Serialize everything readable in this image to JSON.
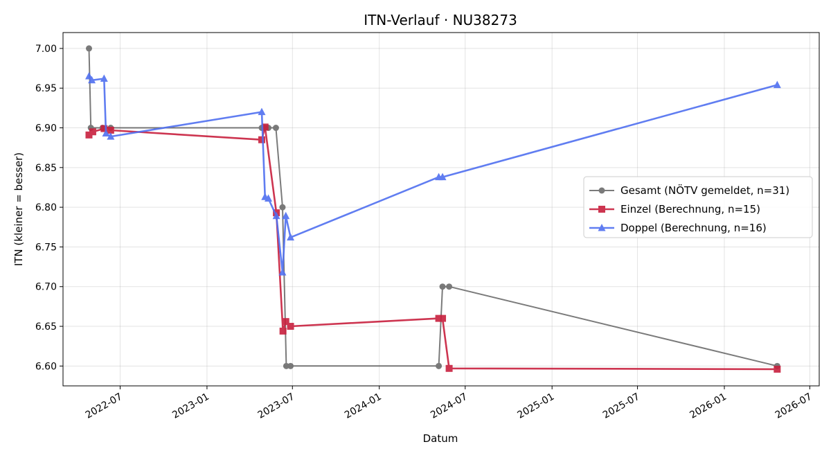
{
  "chart_data": {
    "type": "line",
    "title": "ITN-Verlauf · NU38273",
    "xlabel": "Datum",
    "ylabel": "ITN  (kleiner = besser)",
    "xlim": [
      "2022-03-02",
      "2026-07-21"
    ],
    "ylim": [
      6.575,
      7.02
    ],
    "x_ticks": [
      "2022-07-01",
      "2023-01-01",
      "2023-07-01",
      "2024-01-01",
      "2024-07-01",
      "2025-01-01",
      "2025-07-01",
      "2026-01-01",
      "2026-07-01"
    ],
    "x_tick_labels": [
      "2022-07",
      "2023-01",
      "2023-07",
      "2024-01",
      "2024-07",
      "2025-01",
      "2025-07",
      "2026-01",
      "2026-07"
    ],
    "y_ticks": [
      6.6,
      6.65,
      6.7,
      6.75,
      6.8,
      6.85,
      6.9,
      6.95,
      7.0
    ],
    "y_tick_labels": [
      "6.60",
      "6.65",
      "6.70",
      "6.75",
      "6.80",
      "6.85",
      "6.90",
      "6.95",
      "7.00"
    ],
    "grid": true,
    "legend_position": "center-right",
    "series": [
      {
        "name": "Gesamt (NÖTV gemeldet, n=31)",
        "color": "#555555",
        "marker": "circle",
        "points": [
          [
            "2022-04-26",
            7.0
          ],
          [
            "2022-04-30",
            6.9
          ],
          [
            "2022-05-25",
            6.9
          ],
          [
            "2022-06-11",
            6.9
          ],
          [
            "2023-04-27",
            6.9
          ],
          [
            "2023-05-03",
            6.9
          ],
          [
            "2023-05-11",
            6.9
          ],
          [
            "2023-05-27",
            6.9
          ],
          [
            "2023-06-10",
            6.8
          ],
          [
            "2023-06-18",
            6.6
          ],
          [
            "2023-06-27",
            6.6
          ],
          [
            "2024-05-06",
            6.6
          ],
          [
            "2024-05-14",
            6.7
          ],
          [
            "2024-05-28",
            6.7
          ],
          [
            "2026-04-23",
            6.6
          ]
        ]
      },
      {
        "name": "Einzel (Berechnung, n=15)",
        "color": "#c8203e",
        "marker": "square",
        "points": [
          [
            "2022-04-26",
            6.891
          ],
          [
            "2022-05-04",
            6.895
          ],
          [
            "2022-05-28",
            6.899
          ],
          [
            "2022-06-11",
            6.897
          ],
          [
            "2023-04-27",
            6.885
          ],
          [
            "2023-05-04",
            6.901
          ],
          [
            "2023-05-28",
            6.793
          ],
          [
            "2023-06-11",
            6.644
          ],
          [
            "2023-06-17",
            6.656
          ],
          [
            "2023-06-27",
            6.65
          ],
          [
            "2024-05-06",
            6.66
          ],
          [
            "2024-05-14",
            6.66
          ],
          [
            "2024-05-28",
            6.597
          ],
          [
            "2026-04-23",
            6.596
          ]
        ]
      },
      {
        "name": "Doppel (Berechnung, n=16)",
        "color": "#4f6ff0",
        "marker": "triangle",
        "points": [
          [
            "2022-04-26",
            6.965
          ],
          [
            "2022-05-02",
            6.96
          ],
          [
            "2022-05-28",
            6.962
          ],
          [
            "2022-06-01",
            6.893
          ],
          [
            "2022-06-11",
            6.889
          ],
          [
            "2023-04-27",
            6.92
          ],
          [
            "2023-05-04",
            6.813
          ],
          [
            "2023-05-11",
            6.811
          ],
          [
            "2023-05-28",
            6.789
          ],
          [
            "2023-06-10",
            6.718
          ],
          [
            "2023-06-17",
            6.789
          ],
          [
            "2023-06-27",
            6.762
          ],
          [
            "2024-05-06",
            6.838
          ],
          [
            "2024-05-14",
            6.838
          ],
          [
            "2026-04-23",
            6.954
          ]
        ]
      }
    ]
  }
}
